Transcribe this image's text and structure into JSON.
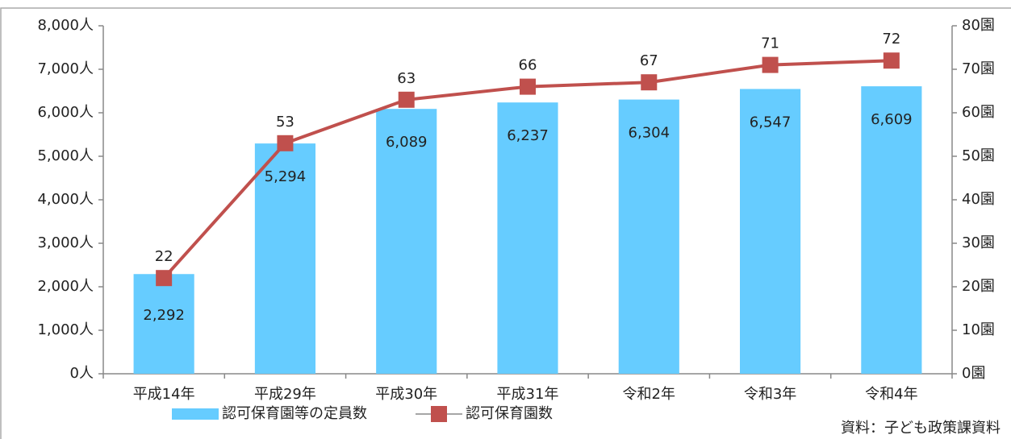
{
  "chart_data": {
    "type": "combo",
    "categories": [
      "平成14年",
      "平成29年",
      "平成30年",
      "平成31年",
      "令和2年",
      "令和3年",
      "令和4年"
    ],
    "series": [
      {
        "name": "認可保育園等の定員数",
        "type": "bar",
        "color": "#66ccff",
        "values": [
          2292,
          5294,
          6089,
          6237,
          6304,
          6547,
          6609
        ],
        "value_labels": [
          "2,292",
          "5,294",
          "6,089",
          "6,237",
          "6,304",
          "6,547",
          "6,609"
        ]
      },
      {
        "name": "認可保育園数",
        "type": "line",
        "color": "#c0504d",
        "axis": "y2",
        "values": [
          22,
          53,
          63,
          66,
          67,
          71,
          72
        ]
      }
    ],
    "ylim": [
      0,
      8000
    ],
    "yticks": [
      {
        "value": 0,
        "label": "0人"
      },
      {
        "value": 1000,
        "label": "1,000人"
      },
      {
        "value": 2000,
        "label": "2,000人"
      },
      {
        "value": 3000,
        "label": "3,000人"
      },
      {
        "value": 4000,
        "label": "4,000人"
      },
      {
        "value": 5000,
        "label": "5,000人"
      },
      {
        "value": 6000,
        "label": "6,000人"
      },
      {
        "value": 7000,
        "label": "7,000人"
      },
      {
        "value": 8000,
        "label": "8,000人"
      }
    ],
    "y2lim": [
      0,
      80
    ],
    "y2ticks": [
      {
        "value": 0,
        "label": "0園"
      },
      {
        "value": 10,
        "label": "10園"
      },
      {
        "value": 20,
        "label": "20園"
      },
      {
        "value": 30,
        "label": "30園"
      },
      {
        "value": 40,
        "label": "40園"
      },
      {
        "value": 50,
        "label": "50園"
      },
      {
        "value": 60,
        "label": "60園"
      },
      {
        "value": 70,
        "label": "70園"
      },
      {
        "value": 80,
        "label": "80園"
      }
    ],
    "grid": false,
    "legend": "bottom",
    "source": "資料：子ども政策課資料"
  }
}
